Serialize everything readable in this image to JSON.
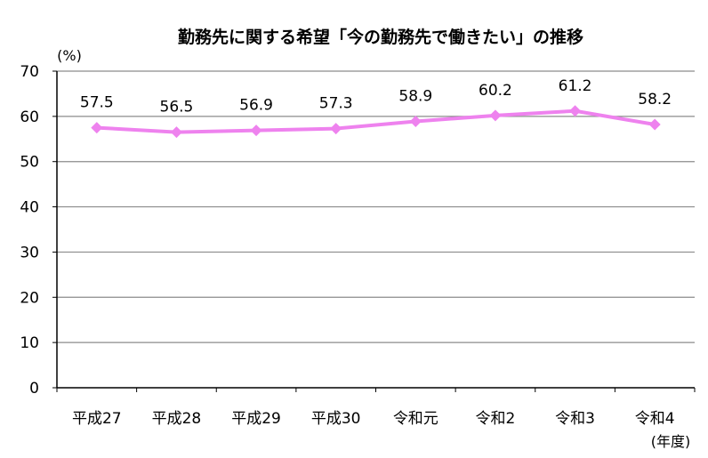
{
  "chart_data": {
    "type": "line",
    "title": "勤務先に関する希望「今の勤務先で働きたい」の推移",
    "ylabel": "(%)",
    "xlabel": "(年度)",
    "categories": [
      "平成27",
      "平成28",
      "平成29",
      "平成30",
      "令和元",
      "令和2",
      "令和3",
      "令和4"
    ],
    "series": [
      {
        "values": [
          57.5,
          56.5,
          56.9,
          57.3,
          58.9,
          60.2,
          61.2,
          58.2
        ]
      }
    ],
    "ylim": [
      0,
      70
    ],
    "yticks": [
      0,
      10,
      20,
      30,
      40,
      50,
      60,
      70
    ],
    "grid": true,
    "legend": "none",
    "colors": {
      "line": "#ee82ee",
      "marker": "#ee82ee",
      "grid": "#8c8c8c",
      "axis": "#000000"
    }
  }
}
